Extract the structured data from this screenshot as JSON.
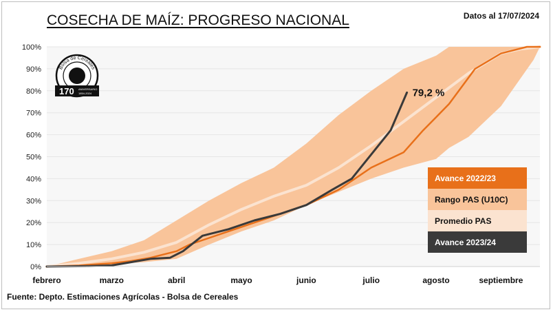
{
  "header": {
    "title": "COSECHA DE MAÍZ: PROGRESO NACIONAL",
    "date": "Datos al 17/07/2024"
  },
  "footer": {
    "source": "Fuente: Depto. Estimaciones Agrícolas - Bolsa de Cereales"
  },
  "logo": {
    "text": "Bolsa de Cereales",
    "anniversary": "170",
    "anniversary_label": "ANIVERSARIO",
    "years": "1854-2024"
  },
  "colors": {
    "range": "#f9c49a",
    "average": "#fbe3d0",
    "avance_2223": "#e8701a",
    "avance_2324": "#3a3a3a",
    "grid": "#e6e6e6"
  },
  "chart_data": {
    "type": "line",
    "title": "COSECHA DE MAÍZ: PROGRESO NACIONAL",
    "x_ticks": [
      "febrero",
      "marzo",
      "abril",
      "mayo",
      "junio",
      "julio",
      "agosto",
      "septiembre"
    ],
    "y_ticks": [
      "0%",
      "10%",
      "20%",
      "30%",
      "40%",
      "50%",
      "60%",
      "70%",
      "80%",
      "90%",
      "100%"
    ],
    "ylim": [
      0,
      100
    ],
    "xlim": [
      0,
      7.6
    ],
    "grid": true,
    "legend_position": "right",
    "annotation": "79,2 %",
    "series": [
      {
        "name": "Rango PAS (U10C)",
        "kind": "band",
        "x": [
          0,
          0.5,
          1,
          1.5,
          2,
          2.5,
          3,
          3.5,
          4,
          4.5,
          5,
          5.5,
          6,
          6.2,
          6.5,
          7,
          7.5,
          7.6
        ],
        "lower": [
          0,
          0.2,
          1,
          2,
          3.5,
          10,
          16,
          21,
          28,
          34,
          40,
          45,
          49,
          54,
          59,
          73,
          94,
          100
        ],
        "upper": [
          0,
          3.5,
          7,
          12,
          21,
          30,
          38,
          45,
          56,
          69,
          80,
          90,
          96,
          100,
          100,
          100,
          100,
          100
        ]
      },
      {
        "name": "Promedio PAS",
        "kind": "line",
        "x": [
          0,
          0.5,
          1,
          1.5,
          2,
          2.5,
          3,
          3.5,
          4,
          4.5,
          5,
          5.5,
          6,
          6.5,
          7,
          7.3,
          7.6
        ],
        "values": [
          0,
          1.5,
          3.5,
          6.5,
          11,
          19,
          26,
          32,
          37,
          45,
          55,
          66,
          77,
          88,
          97,
          99,
          100
        ]
      },
      {
        "name": "Avance 2022/23",
        "kind": "line",
        "x": [
          0,
          0.5,
          1,
          1.3,
          1.6,
          2,
          2.2,
          2.5,
          3,
          3.5,
          4,
          4.5,
          5,
          5.5,
          5.8,
          6,
          6.2,
          6.6,
          7,
          7.4,
          7.6
        ],
        "values": [
          0,
          0.5,
          1.5,
          2.5,
          4,
          7,
          10,
          13,
          18,
          23,
          28,
          35,
          45,
          52,
          62,
          68,
          74,
          90,
          97,
          100,
          100
        ]
      },
      {
        "name": "Avance 2023/24",
        "kind": "line",
        "x": [
          0,
          0.6,
          1,
          1.3,
          1.6,
          1.9,
          2.1,
          2.4,
          2.8,
          3.2,
          3.6,
          4,
          4.4,
          4.7,
          5,
          5.3,
          5.55
        ],
        "values": [
          0,
          0.2,
          0.5,
          2,
          3.5,
          4,
          7,
          14,
          17,
          21,
          24,
          28,
          35,
          40,
          51,
          62,
          79.2
        ]
      }
    ]
  },
  "legend": [
    {
      "label": "Avance 2022/23",
      "bg": "#e8701a",
      "fg": "#ffffff"
    },
    {
      "label": "Rango PAS (U10C)",
      "bg": "#f9c49a",
      "fg": "#111111"
    },
    {
      "label": "Promedio PAS",
      "bg": "#fbe3d0",
      "fg": "#111111"
    },
    {
      "label": "Avance 2023/24",
      "bg": "#3a3a3a",
      "fg": "#ffffff"
    }
  ]
}
